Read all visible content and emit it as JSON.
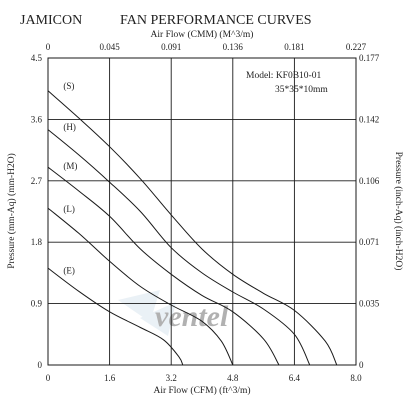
{
  "header": {
    "brand": "JAMICON",
    "title": "FAN PERFORMANCE CURVES"
  },
  "model_info": {
    "line1": "Model:  KF0B10-01",
    "line2": "35*35*10mm"
  },
  "watermark_text": "ventel",
  "chart_data": {
    "type": "line",
    "xlabel": "Air Flow (CFM) (ft^3/m)",
    "x2label": "Air Flow (CMM) (M^3/m)",
    "ylabel": "Pressure (mm-Aq) (mm-H2O)",
    "y2label": "Pressure (inch-Aq) (inch-H2O)",
    "xlim": [
      0,
      8.0
    ],
    "ylim": [
      0,
      4.5
    ],
    "x_ticks": [
      "0",
      "1.6",
      "3.2",
      "4.8",
      "6.4",
      "8.0"
    ],
    "x2_ticks": [
      "0",
      "0.045",
      "0.091",
      "0.136",
      "0.181",
      "0.227"
    ],
    "y_ticks": [
      "0",
      "0.9",
      "1.8",
      "2.7",
      "3.6",
      "4.5"
    ],
    "y2_ticks": [
      "0",
      "0.035",
      "0.071",
      "0.106",
      "0.142",
      "0.177"
    ],
    "grid": true,
    "series": [
      {
        "name": "(S)",
        "label_at": [
          0.4,
          4.0
        ],
        "points": [
          [
            0,
            4.02
          ],
          [
            0.8,
            3.62
          ],
          [
            1.6,
            3.2
          ],
          [
            2.4,
            2.73
          ],
          [
            3.2,
            2.2
          ],
          [
            4.0,
            1.7
          ],
          [
            4.8,
            1.33
          ],
          [
            5.6,
            1.05
          ],
          [
            6.4,
            0.8
          ],
          [
            7.2,
            0.35
          ],
          [
            7.5,
            0
          ]
        ]
      },
      {
        "name": "(H)",
        "label_at": [
          0.4,
          3.4
        ],
        "points": [
          [
            0,
            3.45
          ],
          [
            0.8,
            3.08
          ],
          [
            1.6,
            2.68
          ],
          [
            2.4,
            2.25
          ],
          [
            3.2,
            1.72
          ],
          [
            4.0,
            1.35
          ],
          [
            4.8,
            1.07
          ],
          [
            5.6,
            0.82
          ],
          [
            6.4,
            0.45
          ],
          [
            6.8,
            0
          ]
        ]
      },
      {
        "name": "(M)",
        "label_at": [
          0.4,
          2.83
        ],
        "points": [
          [
            0,
            2.9
          ],
          [
            0.8,
            2.55
          ],
          [
            1.6,
            2.18
          ],
          [
            2.4,
            1.7
          ],
          [
            3.2,
            1.33
          ],
          [
            4.0,
            1.02
          ],
          [
            4.8,
            0.78
          ],
          [
            5.6,
            0.38
          ],
          [
            6.0,
            0
          ]
        ]
      },
      {
        "name": "(L)",
        "label_at": [
          0.4,
          2.2
        ],
        "points": [
          [
            0,
            2.3
          ],
          [
            0.8,
            1.93
          ],
          [
            1.6,
            1.52
          ],
          [
            2.4,
            1.15
          ],
          [
            3.2,
            0.88
          ],
          [
            4.0,
            0.64
          ],
          [
            4.5,
            0.35
          ],
          [
            4.8,
            0
          ]
        ]
      },
      {
        "name": "(E)",
        "label_at": [
          0.4,
          1.3
        ],
        "points": [
          [
            0,
            1.42
          ],
          [
            0.8,
            1.08
          ],
          [
            1.6,
            0.78
          ],
          [
            2.4,
            0.55
          ],
          [
            3.0,
            0.37
          ],
          [
            3.4,
            0.12
          ],
          [
            3.5,
            0
          ]
        ]
      }
    ]
  }
}
